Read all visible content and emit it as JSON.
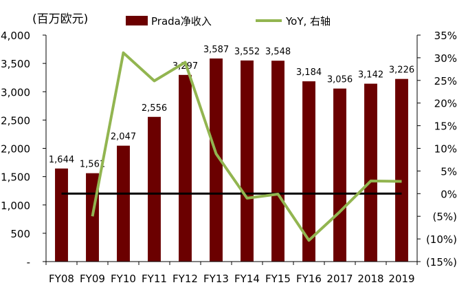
{
  "chart_data": {
    "type": "bar",
    "unit_label": "(百万欧元)",
    "categories": [
      "FY08",
      "FY09",
      "FY10",
      "FY11",
      "FY12",
      "FY13",
      "FY14",
      "FY15",
      "FY16",
      "2017",
      "2018",
      "2019"
    ],
    "series": [
      {
        "name": "Prada净收入",
        "type": "bar",
        "axis": "left",
        "color": "#6b0000",
        "values": [
          1644,
          1561,
          2047,
          2556,
          3297,
          3587,
          3552,
          3548,
          3184,
          3056,
          3142,
          3226
        ],
        "data_labels": [
          "1,644",
          "1,561",
          "2,047",
          "2,556",
          "3,297",
          "3,587",
          "3,552",
          "3,548",
          "3,184",
          "3,056",
          "3,142",
          "3,226"
        ]
      },
      {
        "name": "YoY, 右轴",
        "type": "line",
        "axis": "right",
        "color": "#92b550",
        "values": [
          null,
          -5.0,
          31.1,
          24.9,
          29.0,
          8.8,
          -1.0,
          -0.1,
          -10.3,
          -4.0,
          2.8,
          2.7
        ]
      }
    ],
    "left_axis": {
      "ylim": [
        0,
        4000
      ],
      "ticks": [
        0,
        500,
        1000,
        1500,
        2000,
        2500,
        3000,
        3500,
        4000
      ],
      "tick_labels": [
        "-",
        "500",
        "1,000",
        "1,500",
        "2,000",
        "2,500",
        "3,000",
        "3,500",
        "4,000"
      ]
    },
    "right_axis": {
      "ylim": [
        -15,
        35
      ],
      "ticks": [
        -15,
        -10,
        -5,
        0,
        5,
        10,
        15,
        20,
        25,
        30,
        35
      ],
      "tick_labels": [
        "(15%)",
        "(10%)",
        "(5%)",
        "0%",
        "5%",
        "10%",
        "15%",
        "20%",
        "25%",
        "30%",
        "35%"
      ]
    },
    "zero_line": {
      "axis": "right",
      "value": 0,
      "color": "#000000"
    },
    "legend_position": "top",
    "grid": false
  }
}
